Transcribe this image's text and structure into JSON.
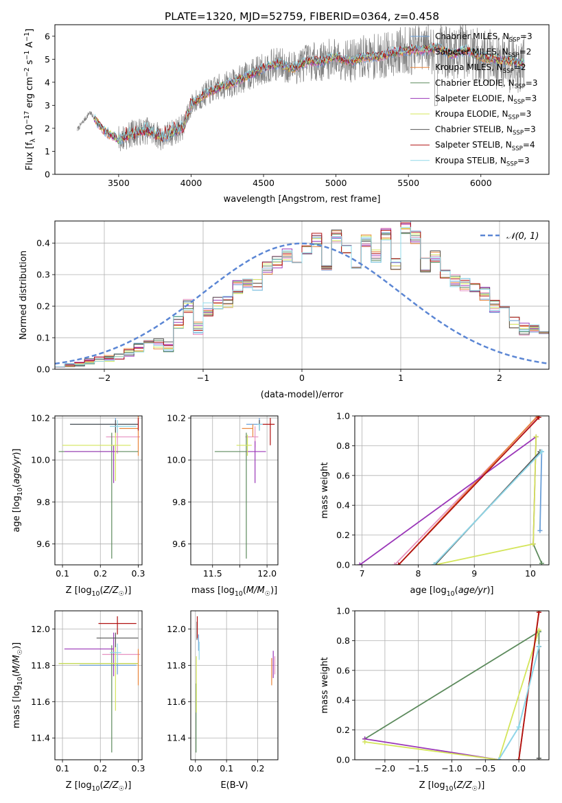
{
  "title": "PLATE=1320, MJD=52759, FIBERID=0364, z=0.458",
  "colors": {
    "Chabrier MILES": "#6a9fd8",
    "Salpeter MILES": "#e691c0",
    "Kroupa MILES": "#e8843a",
    "Chabrier ELODIE": "#5c8a5c",
    "Salpeter ELODIE": "#9a36b8",
    "Kroupa ELODIE": "#d4e55a",
    "Chabrier STELIB": "#555555",
    "Salpeter STELIB": "#b01010",
    "Kroupa STELIB": "#8fd8e8",
    "data": "#808080",
    "gaussian": "#5b86d4"
  },
  "chart_data": [
    {
      "id": "spectrum",
      "type": "line",
      "xlabel": "wavelength [Angstrom, rest frame]",
      "ylabel": "Flux [fλ 10⁻¹⁷ erg cm⁻² s⁻¹ A⁻¹]",
      "xlim": [
        3060,
        6470
      ],
      "ylim": [
        0,
        6.5
      ],
      "xticks": [
        3500,
        4000,
        4500,
        5000,
        5500,
        6000
      ],
      "yticks": [
        0,
        1,
        2,
        3,
        4,
        5,
        6
      ],
      "continuum": {
        "x": [
          3210,
          3280,
          3300,
          3350,
          3400,
          3500,
          3600,
          3700,
          3800,
          3900,
          3950,
          4000,
          4100,
          4200,
          4300,
          4400,
          4500,
          4600,
          4700,
          4800,
          4900,
          5000,
          5100,
          5200,
          5300,
          5400,
          5500,
          5600,
          5700,
          5800,
          5900,
          6000,
          6100,
          6200,
          6300
        ],
        "y": [
          1.9,
          2.5,
          2.7,
          2.3,
          1.9,
          1.5,
          1.8,
          1.9,
          1.6,
          1.9,
          2.1,
          3.0,
          3.5,
          3.8,
          4.0,
          4.3,
          4.6,
          4.8,
          4.6,
          4.9,
          4.9,
          5.1,
          4.9,
          5.1,
          5.1,
          5.3,
          5.4,
          5.4,
          5.5,
          5.2,
          5.4,
          5.1,
          5.0,
          4.9,
          4.8
        ]
      },
      "series": [
        {
          "name": "Chabrier MILES, N_SSP=3",
          "label_main": "Chabrier MILES, N",
          "label_sub": "SSP",
          "label_tail": "=3"
        },
        {
          "name": "Salpeter MILES, N_SSP=2",
          "label_main": "Salpeter MILES, N",
          "label_sub": "SSP",
          "label_tail": "=2"
        },
        {
          "name": "Kroupa MILES, N_SSP=2",
          "label_main": "Kroupa MILES, N",
          "label_sub": "SSP",
          "label_tail": "=2"
        },
        {
          "name": "Chabrier ELODIE, N_SSP=3",
          "label_main": "Chabrier ELODIE, N",
          "label_sub": "SSP",
          "label_tail": "=3"
        },
        {
          "name": "Salpeter ELODIE, N_SSP=3",
          "label_main": "Salpeter ELODIE, N",
          "label_sub": "SSP",
          "label_tail": "=3"
        },
        {
          "name": "Kroupa ELODIE, N_SSP=3",
          "label_main": "Kroupa ELODIE, N",
          "label_sub": "SSP",
          "label_tail": "=3"
        },
        {
          "name": "Chabrier STELIB, N_SSP=3",
          "label_main": "Chabrier STELIB, N",
          "label_sub": "SSP",
          "label_tail": "=3"
        },
        {
          "name": "Salpeter STELIB, N_SSP=4",
          "label_main": "Salpeter STELIB, N",
          "label_sub": "SSP",
          "label_tail": "=4"
        },
        {
          "name": "Kroupa STELIB, N_SSP=3",
          "label_main": "Kroupa STELIB, N",
          "label_sub": "SSP",
          "label_tail": "=3"
        }
      ],
      "legend": "top-right"
    },
    {
      "id": "residuals",
      "type": "histogram",
      "xlabel": "(data-model)/error",
      "ylabel": "Normed distribution",
      "xlim": [
        -2.5,
        2.5
      ],
      "ylim": [
        0,
        0.47
      ],
      "xticks": [
        -2,
        -1,
        0,
        1,
        2
      ],
      "yticks": [
        0.0,
        0.1,
        0.2,
        0.3,
        0.4
      ],
      "bins": {
        "start": -2.5,
        "width": 0.1
      },
      "base_distribution": [
        0.008,
        0.012,
        0.018,
        0.025,
        0.03,
        0.035,
        0.04,
        0.055,
        0.07,
        0.1,
        0.08,
        0.07,
        0.15,
        0.2,
        0.13,
        0.19,
        0.21,
        0.21,
        0.26,
        0.28,
        0.27,
        0.32,
        0.34,
        0.36,
        0.33,
        0.38,
        0.41,
        0.33,
        0.42,
        0.38,
        0.34,
        0.41,
        0.36,
        0.43,
        0.33,
        0.45,
        0.42,
        0.33,
        0.36,
        0.3,
        0.28,
        0.27,
        0.25,
        0.24,
        0.2,
        0.19,
        0.15,
        0.13,
        0.13,
        0.11,
        0.09,
        0.1,
        0.085,
        0.07,
        0.07,
        0.06,
        0.05,
        0.045,
        0.035,
        0.03
      ],
      "gaussian_label": "𝒩(0, 1)",
      "legend": "top-right"
    },
    {
      "id": "age-vs-Z",
      "type": "errorbar",
      "xlabel": "Z [log10(Z/Z☉)]",
      "ylabel": "age  [log10(age/yr)]",
      "xlim": [
        0.08,
        0.31
      ],
      "ylim": [
        9.5,
        10.21
      ],
      "xticks": [
        0.1,
        0.2,
        0.3
      ],
      "yticks": [
        9.6,
        9.8,
        10.0,
        10.2
      ],
      "points": [
        {
          "x": 0.24,
          "y": 10.17,
          "xerr": [
            0.12,
            0.06
          ],
          "yerr": [
            0.04,
            0.03
          ],
          "color": "Chabrier MILES"
        },
        {
          "x": 0.245,
          "y": 10.11,
          "xerr": [
            0.03,
            0.06
          ],
          "yerr": [
            0.08,
            0.05
          ],
          "color": "Salpeter MILES"
        },
        {
          "x": 0.3,
          "y": 10.15,
          "xerr": [
            0.05,
            0.0
          ],
          "yerr": [
            0.13,
            0.06
          ],
          "color": "Kroupa MILES"
        },
        {
          "x": 0.23,
          "y": 10.04,
          "xerr": [
            0.14,
            0.07
          ],
          "yerr": [
            0.51,
            0.09
          ],
          "color": "Chabrier ELODIE"
        },
        {
          "x": 0.235,
          "y": 10.04,
          "xerr": [
            0.13,
            0.01
          ],
          "yerr": [
            0.15,
            0.03
          ],
          "color": "Salpeter ELODIE"
        },
        {
          "x": 0.24,
          "y": 10.07,
          "xerr": [
            0.14,
            0.04
          ],
          "yerr": [
            0.17,
            0.08
          ],
          "color": "Kroupa ELODIE"
        },
        {
          "x": 0.24,
          "y": 10.17,
          "xerr": [
            0.12,
            0.06
          ],
          "yerr": [
            0.04,
            0.02
          ],
          "color": "Chabrier STELIB"
        },
        {
          "x": 0.3,
          "y": 10.17,
          "xerr": [
            0.0,
            0.0
          ],
          "yerr": [
            0.03,
            0.03
          ],
          "color": "Salpeter STELIB"
        },
        {
          "x": 0.245,
          "y": 10.16,
          "xerr": [
            0.02,
            0.05
          ],
          "yerr": [
            0.03,
            0.03
          ],
          "color": "Kroupa STELIB"
        }
      ]
    },
    {
      "id": "age-vs-mass",
      "type": "errorbar",
      "xlabel": "mass [log10(M/M☉)]",
      "ylabel": "",
      "xlim": [
        11.3,
        12.1
      ],
      "ylim": [
        9.5,
        10.21
      ],
      "xticks": [
        11.5,
        11.75,
        12.0
      ],
      "xtick_labels": [
        "11.5",
        "",
        "12.0"
      ],
      "yticks": [
        9.6,
        9.8,
        10.0,
        10.2
      ],
      "points": [
        {
          "x": 11.93,
          "y": 10.17,
          "xerr": [
            0.12,
            0.03
          ],
          "yerr": [
            0.03,
            0.03
          ],
          "color": "Chabrier MILES"
        },
        {
          "x": 11.89,
          "y": 10.11,
          "xerr": [
            0.09,
            0.03
          ],
          "yerr": [
            0.05,
            0.05
          ],
          "color": "Salpeter MILES"
        },
        {
          "x": 11.87,
          "y": 10.15,
          "xerr": [
            0.1,
            0.0
          ],
          "yerr": [
            0.04,
            0.02
          ],
          "color": "Kroupa MILES"
        },
        {
          "x": 11.81,
          "y": 10.04,
          "xerr": [
            0.29,
            0.0
          ],
          "yerr": [
            0.51,
            0.09
          ],
          "color": "Chabrier ELODIE"
        },
        {
          "x": 11.89,
          "y": 10.04,
          "xerr": [
            0.08,
            0.1
          ],
          "yerr": [
            0.15,
            0.05
          ],
          "color": "Salpeter ELODIE"
        },
        {
          "x": 11.82,
          "y": 10.07,
          "xerr": [
            0.1,
            0.04
          ],
          "yerr": [
            0.05,
            0.05
          ],
          "color": "Kroupa ELODIE"
        },
        {
          "x": 11.93,
          "y": 10.17,
          "xerr": [
            0.0,
            0.0
          ],
          "yerr": [
            0.03,
            0.02
          ],
          "color": "Chabrier STELIB"
        },
        {
          "x": 12.03,
          "y": 10.17,
          "xerr": [
            0.07,
            0.04
          ],
          "yerr": [
            0.1,
            0.03
          ],
          "color": "Salpeter STELIB"
        },
        {
          "x": 11.93,
          "y": 10.17,
          "xerr": [
            0.02,
            0.03
          ],
          "yerr": [
            0.03,
            0.0
          ],
          "color": "Kroupa STELIB"
        }
      ]
    },
    {
      "id": "mass-weight-vs-age",
      "type": "line",
      "xlabel": "age  [log10(age/yr)]",
      "ylabel": "mass weight",
      "xlim": [
        6.87,
        10.33
      ],
      "ylim": [
        0,
        1.0
      ],
      "xticks": [
        7,
        8,
        9,
        10
      ],
      "yticks": [
        0.0,
        0.2,
        0.4,
        0.6,
        0.8,
        1.0
      ],
      "series": [
        {
          "color": "Chabrier MILES",
          "x": [
            8.28,
            10.2,
            10.17
          ],
          "y": [
            0.0,
            0.76,
            0.23
          ]
        },
        {
          "color": "Salpeter MILES",
          "x": [
            7.58,
            10.12
          ],
          "y": [
            0.0,
            0.99
          ]
        },
        {
          "color": "Kroupa MILES",
          "x": [
            7.65,
            10.13
          ],
          "y": [
            0.0,
            1.0
          ]
        },
        {
          "color": "Chabrier ELODIE",
          "x": [
            10.05,
            10.2
          ],
          "y": [
            0.14,
            0.01
          ]
        },
        {
          "color": "Salpeter ELODIE",
          "x": [
            6.96,
            10.1,
            10.05
          ],
          "y": [
            0.0,
            0.86,
            0.14
          ]
        },
        {
          "color": "Kroupa ELODIE",
          "x": [
            8.3,
            10.05,
            10.1
          ],
          "y": [
            0.0,
            0.14,
            0.86
          ]
        },
        {
          "color": "Chabrier STELIB",
          "x": [
            8.3,
            10.17
          ],
          "y": [
            0.0,
            0.76
          ]
        },
        {
          "color": "Salpeter STELIB",
          "x": [
            7.65,
            10.15
          ],
          "y": [
            0.0,
            0.99
          ]
        },
        {
          "color": "Kroupa STELIB",
          "x": [
            8.28,
            10.2
          ],
          "y": [
            0.0,
            0.76
          ]
        }
      ]
    },
    {
      "id": "mass-vs-Z",
      "type": "errorbar",
      "xlabel": "Z [log10(Z/Z☉)]",
      "ylabel": "mass [log10(M/M☉)]",
      "xlim": [
        0.08,
        0.31
      ],
      "ylim": [
        11.28,
        12.1
      ],
      "xticks": [
        0.1,
        0.2,
        0.3
      ],
      "yticks": [
        11.4,
        11.6,
        11.8,
        12.0
      ],
      "points": [
        {
          "x": 0.245,
          "y": 11.8,
          "xerr": [
            0.1,
            0.05
          ],
          "yerr": [
            0.05,
            0.04
          ],
          "color": "Chabrier MILES"
        },
        {
          "x": 0.245,
          "y": 11.86,
          "xerr": [
            0.04,
            0.06
          ],
          "yerr": [
            0.04,
            0.04
          ],
          "color": "Salpeter MILES"
        },
        {
          "x": 0.3,
          "y": 11.81,
          "xerr": [
            0.06,
            0.0
          ],
          "yerr": [
            0.12,
            0.08
          ],
          "color": "Kroupa MILES"
        },
        {
          "x": 0.23,
          "y": 11.81,
          "xerr": [
            0.14,
            0.07
          ],
          "yerr": [
            0.49,
            0.1
          ],
          "color": "Chabrier ELODIE"
        },
        {
          "x": 0.235,
          "y": 11.89,
          "xerr": [
            0.13,
            0.0
          ],
          "yerr": [
            0.15,
            0.09
          ],
          "color": "Salpeter ELODIE"
        },
        {
          "x": 0.24,
          "y": 11.81,
          "xerr": [
            0.15,
            0.06
          ],
          "yerr": [
            0.26,
            0.1
          ],
          "color": "Kroupa ELODIE"
        },
        {
          "x": 0.24,
          "y": 11.95,
          "xerr": [
            0.05,
            0.06
          ],
          "yerr": [
            0.05,
            0.03
          ],
          "color": "Chabrier STELIB"
        },
        {
          "x": 0.245,
          "y": 12.03,
          "xerr": [
            0.05,
            0.05
          ],
          "yerr": [
            0.06,
            0.04
          ],
          "color": "Salpeter STELIB"
        },
        {
          "x": 0.245,
          "y": 11.87,
          "xerr": [
            0.02,
            0.01
          ],
          "yerr": [
            0.06,
            0.05
          ],
          "color": "Kroupa STELIB"
        }
      ]
    },
    {
      "id": "mass-vs-ebv",
      "type": "errorbar",
      "xlabel": "E(B-V)",
      "ylabel": "",
      "xlim": [
        -0.015,
        0.265
      ],
      "ylim": [
        11.28,
        12.1
      ],
      "xticks": [
        0.0,
        0.1,
        0.2
      ],
      "yticks": [
        11.4,
        11.6,
        11.8,
        12.0
      ],
      "points": [
        {
          "x": 0.01,
          "y": 11.93,
          "xerr": [
            0,
            0
          ],
          "yerr": [
            0.05,
            0.04
          ],
          "color": "Chabrier MILES"
        },
        {
          "x": 0.255,
          "y": 11.8,
          "xerr": [
            0,
            0
          ],
          "yerr": [
            0.05,
            0.05
          ],
          "color": "Salpeter MILES"
        },
        {
          "x": 0.245,
          "y": 11.78,
          "xerr": [
            0,
            0
          ],
          "yerr": [
            0.09,
            0.06
          ],
          "color": "Kroupa MILES"
        },
        {
          "x": 0.002,
          "y": 11.5,
          "xerr": [
            0,
            0
          ],
          "yerr": [
            0.18,
            0.2
          ],
          "color": "Chabrier ELODIE"
        },
        {
          "x": 0.25,
          "y": 11.8,
          "xerr": [
            0,
            0
          ],
          "yerr": [
            0.07,
            0.08
          ],
          "color": "Salpeter ELODIE"
        },
        {
          "x": 0.003,
          "y": 11.7,
          "xerr": [
            0,
            0
          ],
          "yerr": [
            0.16,
            0.15
          ],
          "color": "Kroupa ELODIE"
        },
        {
          "x": 0.005,
          "y": 11.99,
          "xerr": [
            0,
            0
          ],
          "yerr": [
            0.05,
            0.05
          ],
          "color": "Chabrier STELIB"
        },
        {
          "x": 0.006,
          "y": 12.0,
          "xerr": [
            0,
            0
          ],
          "yerr": [
            0.05,
            0.07
          ],
          "color": "Salpeter STELIB"
        },
        {
          "x": 0.012,
          "y": 11.88,
          "xerr": [
            0,
            0
          ],
          "yerr": [
            0.05,
            0.05
          ],
          "color": "Kroupa STELIB"
        }
      ]
    },
    {
      "id": "mass-weight-vs-Z",
      "type": "line",
      "xlabel": "Z [log10(Z/Z☉)]",
      "ylabel": "mass weight",
      "xlim": [
        -2.45,
        0.45
      ],
      "ylim": [
        0,
        1.0
      ],
      "xticks": [
        -2.0,
        -1.5,
        -1.0,
        -0.5,
        0.0
      ],
      "yticks": [
        0.0,
        0.2,
        0.4,
        0.6,
        0.8,
        1.0
      ],
      "series": [
        {
          "color": "Chabrier MILES",
          "x": [
            -0.3,
            0.0,
            0.3
          ],
          "y": [
            0.0,
            0.22,
            0.76
          ]
        },
        {
          "color": "Salpeter MILES",
          "x": [
            0.0,
            0.3
          ],
          "y": [
            0.0,
            0.99
          ]
        },
        {
          "color": "Kroupa MILES",
          "x": [
            0.0,
            0.3
          ],
          "y": [
            0.0,
            1.0
          ]
        },
        {
          "color": "Chabrier ELODIE",
          "x": [
            0.3,
            0.3,
            -2.3,
            0.3
          ],
          "y": [
            0.01,
            0.86,
            0.14,
            0.86
          ]
        },
        {
          "color": "Salpeter ELODIE",
          "x": [
            -2.3,
            -0.3
          ],
          "y": [
            0.14,
            0.0
          ]
        },
        {
          "color": "Kroupa ELODIE",
          "x": [
            -2.3,
            -0.3,
            0.3
          ],
          "y": [
            0.12,
            0.0,
            0.87
          ]
        },
        {
          "color": "Chabrier STELIB",
          "x": [
            0.3,
            0.3
          ],
          "y": [
            0.01,
            0.76
          ]
        },
        {
          "color": "Salpeter STELIB",
          "x": [
            0.0,
            0.3
          ],
          "y": [
            0.0,
            0.99
          ]
        },
        {
          "color": "Kroupa STELIB",
          "x": [
            -0.3,
            0.0,
            0.3
          ],
          "y": [
            0.0,
            0.22,
            0.76
          ]
        }
      ]
    }
  ]
}
